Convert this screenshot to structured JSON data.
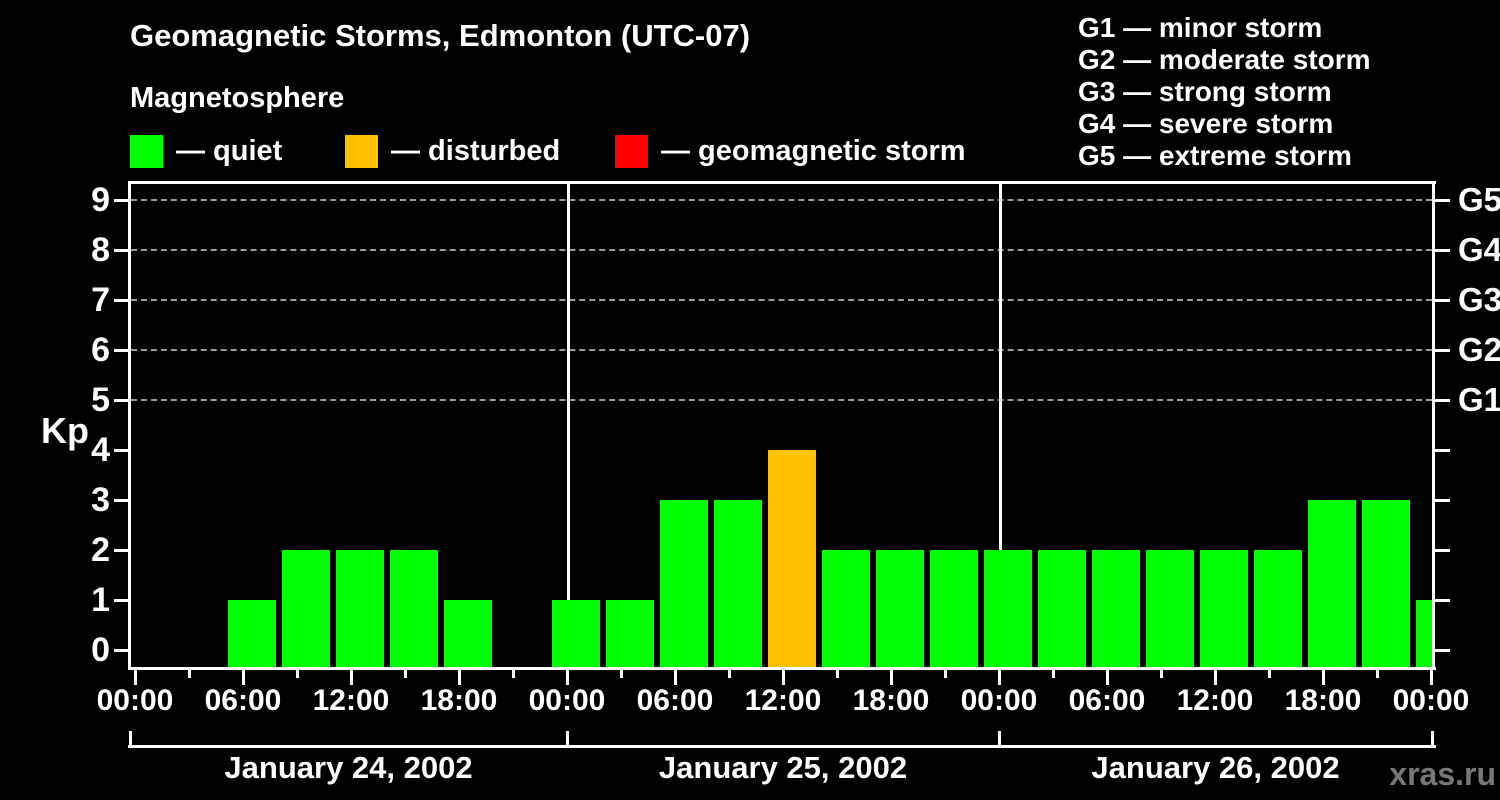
{
  "header": {
    "title": "Geomagnetic Storms, Edmonton (UTC-07)",
    "subtitle": "Magnetosphere",
    "legend": [
      {
        "key": "quiet",
        "label": "— quiet"
      },
      {
        "key": "disturbed",
        "label": "— disturbed"
      },
      {
        "key": "storm",
        "label": "— geomagnetic storm"
      }
    ],
    "g_scale": [
      "G1 — minor storm",
      "G2 — moderate storm",
      "G3 — strong storm",
      "G4 — severe storm",
      "G5 — extreme storm"
    ]
  },
  "watermark": "xras.ru",
  "chart_data": {
    "type": "bar",
    "title": "Geomagnetic Storms, Edmonton (UTC-07)",
    "subtitle": "Magnetosphere",
    "ylabel": "Kp",
    "ylim": [
      0,
      9
    ],
    "y_ticks": [
      0,
      1,
      2,
      3,
      4,
      5,
      6,
      7,
      8,
      9
    ],
    "grid": "dashed horizontal lines at Kp 5-9 (G1-G5 storm levels)",
    "right_axis_labels": [
      {
        "kp": 5,
        "text": "G1"
      },
      {
        "kp": 6,
        "text": "G2"
      },
      {
        "kp": 7,
        "text": "G3"
      },
      {
        "kp": 8,
        "text": "G4"
      },
      {
        "kp": 9,
        "text": "G5"
      }
    ],
    "x_tick_labels_cycle": [
      "00:00",
      "06:00",
      "12:00",
      "18:00"
    ],
    "hours_per_bar": 3,
    "days": [
      {
        "label": "January 24, 2002",
        "kp_values": [
          0,
          0,
          1,
          2,
          2,
          2,
          1,
          0
        ]
      },
      {
        "label": "January 25, 2002",
        "kp_values": [
          1,
          1,
          3,
          3,
          4,
          2,
          2,
          2
        ]
      },
      {
        "label": "January 26, 2002",
        "kp_values": [
          2,
          2,
          2,
          2,
          2,
          2,
          3,
          3
        ]
      }
    ],
    "trailing_bar_kp": 1,
    "colors": {
      "quiet": "#00ff00",
      "disturbed": "#ffc000",
      "storm": "#ff0000"
    },
    "color_rule": {
      "quiet_kp_max": 3,
      "disturbed_kp": 4,
      "storm_kp_min": 5
    },
    "legend_position": "top-left",
    "watermark": "xras.ru"
  }
}
